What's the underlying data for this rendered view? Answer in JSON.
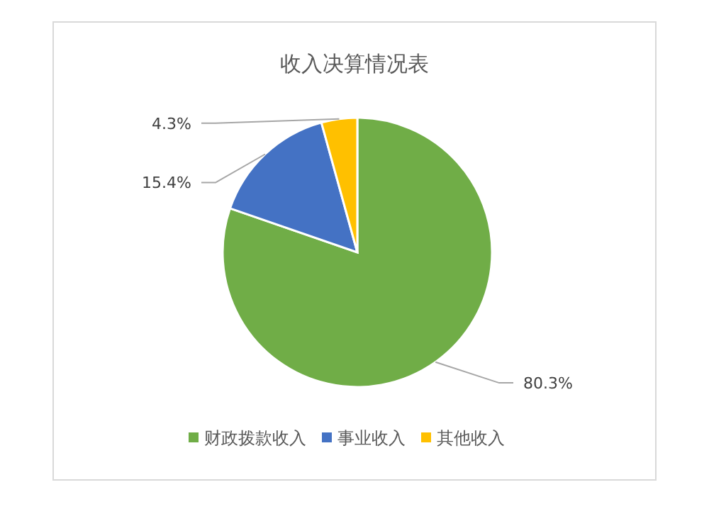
{
  "chart_data": {
    "type": "pie",
    "title": "收入决算情况表",
    "categories": [
      "财政拨款收入",
      "事业收入",
      "其他收入"
    ],
    "values": [
      80.3,
      15.4,
      4.3
    ],
    "colors": [
      "#70ad47",
      "#4472c4",
      "#ffc000"
    ],
    "value_labels": [
      "80.3%",
      "15.4%",
      "4.3%"
    ],
    "legend": "bottom"
  }
}
